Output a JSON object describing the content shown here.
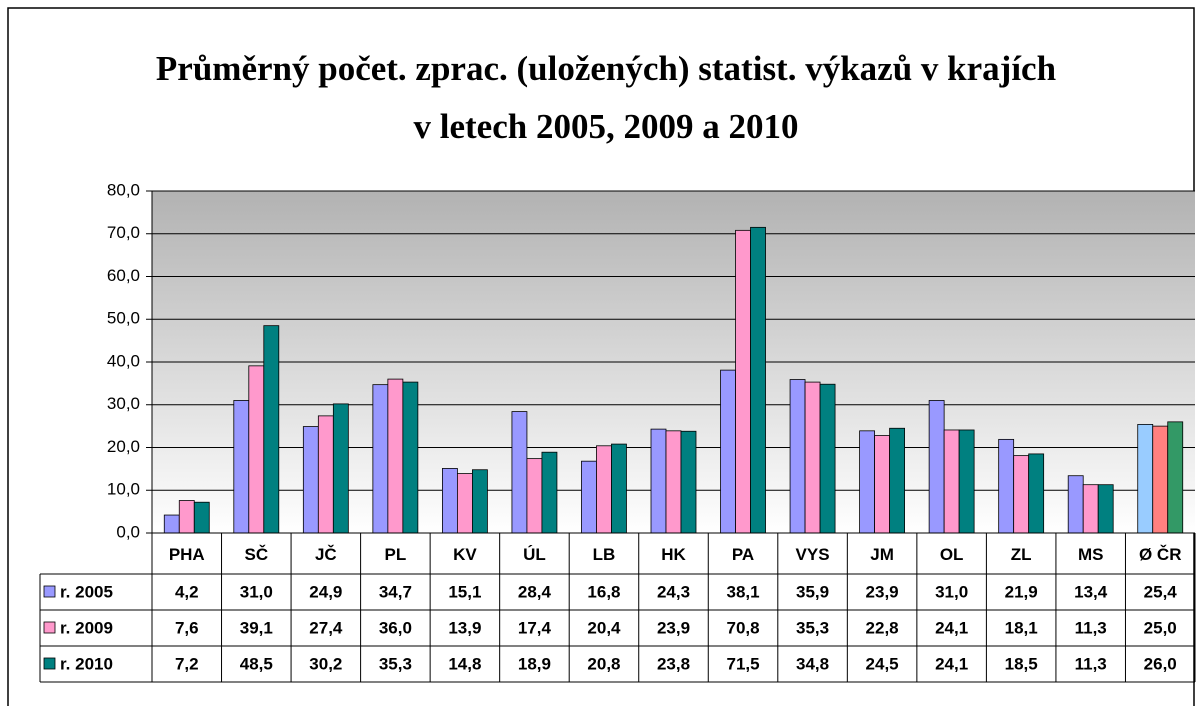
{
  "chart_data": {
    "type": "bar",
    "title": "Průměrný počet. zprac. (uložených) statist. výkazů v krajích",
    "subtitle": "v letech 2005, 2009 a 2010",
    "categories": [
      "PHA",
      "SČ",
      "JČ",
      "PL",
      "KV",
      "ÚL",
      "LB",
      "HK",
      "PA",
      "VYS",
      "JM",
      "OL",
      "ZL",
      "MS",
      "Ø ČR"
    ],
    "series": [
      {
        "name": "r. 2005",
        "color": "#9999ff",
        "highlight_color": "#99ccff",
        "values": [
          4.2,
          31.0,
          24.9,
          34.7,
          15.1,
          28.4,
          16.8,
          24.3,
          38.1,
          35.9,
          23.9,
          31.0,
          21.9,
          13.4,
          25.4
        ],
        "value_labels": [
          "4,2",
          "31,0",
          "24,9",
          "34,7",
          "15,1",
          "28,4",
          "16,8",
          "24,3",
          "38,1",
          "35,9",
          "23,9",
          "31,0",
          "21,9",
          "13,4",
          "25,4"
        ]
      },
      {
        "name": "r. 2009",
        "color": "#ff99cc",
        "highlight_color": "#ff8080",
        "values": [
          7.6,
          39.1,
          27.4,
          36.0,
          13.9,
          17.4,
          20.4,
          23.9,
          70.8,
          35.3,
          22.8,
          24.1,
          18.1,
          11.3,
          25.0
        ],
        "value_labels": [
          "7,6",
          "39,1",
          "27,4",
          "36,0",
          "13,9",
          "17,4",
          "20,4",
          "23,9",
          "70,8",
          "35,3",
          "22,8",
          "24,1",
          "18,1",
          "11,3",
          "25,0"
        ]
      },
      {
        "name": "r. 2010",
        "color": "#008080",
        "highlight_color": "#339966",
        "values": [
          7.2,
          48.5,
          30.2,
          35.3,
          14.8,
          18.9,
          20.8,
          23.8,
          71.5,
          34.8,
          24.5,
          24.1,
          18.5,
          11.3,
          26.0
        ],
        "value_labels": [
          "7,2",
          "48,5",
          "30,2",
          "35,3",
          "14,8",
          "18,9",
          "20,8",
          "23,8",
          "71,5",
          "34,8",
          "24,5",
          "24,1",
          "18,5",
          "11,3",
          "26,0"
        ]
      }
    ],
    "ylim": [
      0,
      80
    ],
    "yticks": [
      {
        "value": 0,
        "label": "0,0"
      },
      {
        "value": 10,
        "label": "10,0"
      },
      {
        "value": 20,
        "label": "20,0"
      },
      {
        "value": 30,
        "label": "30,0"
      },
      {
        "value": 40,
        "label": "40,0"
      },
      {
        "value": 50,
        "label": "50,0"
      },
      {
        "value": 60,
        "label": "60,0"
      },
      {
        "value": 70,
        "label": "70,0"
      },
      {
        "value": 80,
        "label": "80,0"
      }
    ],
    "grid": true
  }
}
